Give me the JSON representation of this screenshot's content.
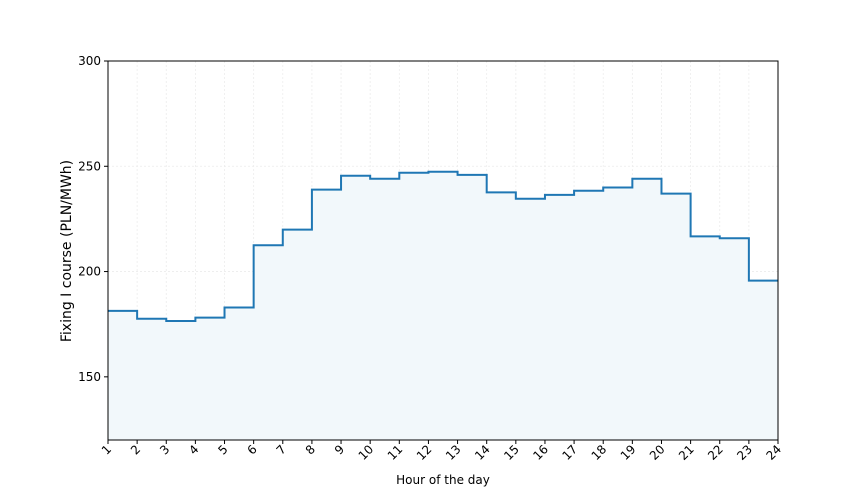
{
  "chart_data": {
    "type": "line",
    "step": "post",
    "xlabel": "Hour of the day",
    "ylabel": "Fixing I course (PLN/MWh)",
    "x": [
      1,
      2,
      3,
      4,
      5,
      6,
      7,
      8,
      9,
      10,
      11,
      12,
      13,
      14,
      15,
      16,
      17,
      18,
      19,
      20,
      21,
      22,
      23,
      24
    ],
    "values": [
      181.3,
      177.6,
      176.5,
      178.1,
      182.9,
      212.5,
      219.9,
      238.9,
      245.5,
      244.1,
      246.9,
      247.4,
      245.9,
      237.6,
      234.6,
      236.4,
      238.4,
      239.9,
      244.1,
      237.0,
      216.7,
      215.8,
      195.7,
      195.7
    ],
    "xlim": [
      1,
      24
    ],
    "ylim": [
      120,
      300
    ],
    "yticks": [
      150,
      200,
      250,
      300
    ],
    "line_color": "#1f77b4",
    "fill_color": "#f2f8fb",
    "grid": true
  }
}
